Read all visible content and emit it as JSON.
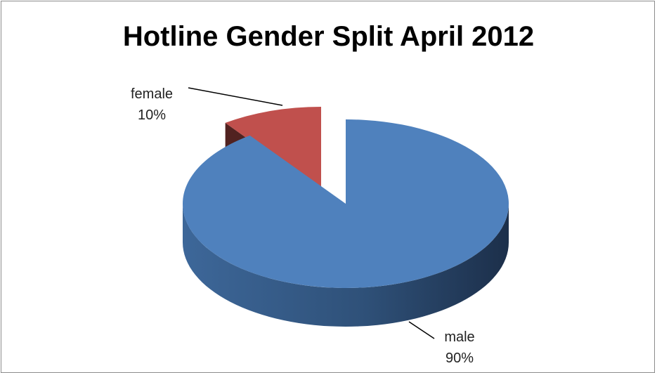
{
  "chart_data": {
    "type": "pie",
    "title": "Hotline Gender Split April 2012",
    "style": "3d-exploded",
    "categories": [
      "female",
      "male"
    ],
    "values": [
      10,
      90
    ],
    "value_labels": [
      "10%",
      "90%"
    ],
    "colors": [
      "#c0504d",
      "#4f81bd"
    ],
    "legend": "none"
  }
}
